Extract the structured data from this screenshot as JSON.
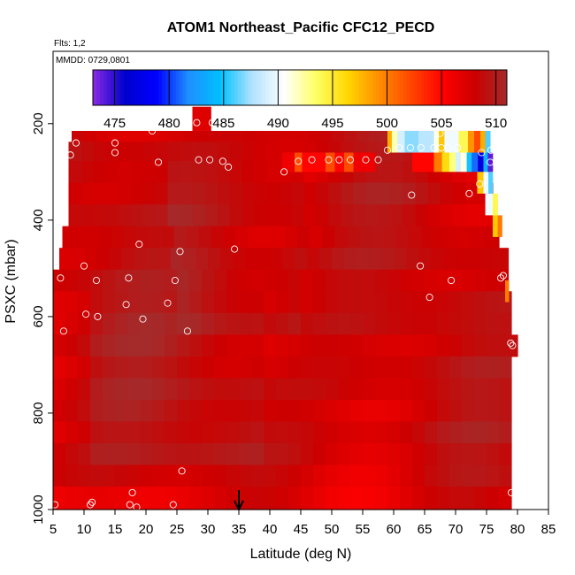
{
  "chart_data": {
    "type": "heatmap",
    "title": "ATOM1 Northeast_Pacific CFC12_PECD",
    "flights_label": "Flts: 1,2",
    "dates_label": "MMDD: 0729,0801",
    "xlabel": "Latitude (deg N)",
    "ylabel": "PSXC (mbar)",
    "xlim": [
      5,
      85
    ],
    "ylim": [
      1000,
      50
    ],
    "y_reversed": true,
    "x_ticks": [
      "5",
      "10",
      "15",
      "20",
      "25",
      "30",
      "35",
      "40",
      "45",
      "50",
      "55",
      "60",
      "65",
      "70",
      "75",
      "80",
      "85"
    ],
    "y_ticks": [
      "200",
      "400",
      "600",
      "800",
      "1000"
    ],
    "colorbar": {
      "min": 473,
      "max": 511,
      "tick_labels": [
        "475",
        "480",
        "485",
        "490",
        "495",
        "500",
        "505",
        "510"
      ],
      "colors": [
        "#8a2be2",
        "#0000cd",
        "#0000ff",
        "#1e90ff",
        "#00bfff",
        "#b0e2ff",
        "#ffffff",
        "#ffff66",
        "#ffd700",
        "#ff8c00",
        "#ff4500",
        "#ff0000",
        "#cc0000",
        "#a52a2a"
      ]
    },
    "marker": {
      "latitude": 35
    },
    "pressure_levels": [
      215,
      260,
      300,
      345,
      390,
      435,
      480,
      525,
      570,
      615,
      660,
      705,
      750,
      795,
      840,
      885,
      930,
      975
    ],
    "row_extents": [
      {
        "lat_min": 8,
        "lat_max": 75.5
      },
      {
        "lat_min": 7.5,
        "lat_max": 75.5
      },
      {
        "lat_min": 7.5,
        "lat_max": 75.5
      },
      {
        "lat_min": 7.5,
        "lat_max": 76
      },
      {
        "lat_min": 7.5,
        "lat_max": 76
      },
      {
        "lat_min": 6.5,
        "lat_max": 77
      },
      {
        "lat_min": 6,
        "lat_max": 78.5
      },
      {
        "lat_min": 5,
        "lat_max": 78.5
      },
      {
        "lat_min": 5,
        "lat_max": 79
      },
      {
        "lat_min": 5,
        "lat_max": 79
      },
      {
        "lat_min": 5,
        "lat_max": 80
      },
      {
        "lat_min": 5,
        "lat_max": 79
      },
      {
        "lat_min": 5,
        "lat_max": 79
      },
      {
        "lat_min": 5,
        "lat_max": 79
      },
      {
        "lat_min": 5,
        "lat_max": 79
      },
      {
        "lat_min": 5,
        "lat_max": 79
      },
      {
        "lat_min": 5,
        "lat_max": 79
      },
      {
        "lat_min": 5,
        "lat_max": 79
      }
    ],
    "anomalies": [
      {
        "lat_min": 27.5,
        "lat_max": 30.5,
        "p_top": 165,
        "p_bottom": 215,
        "value": 507
      },
      {
        "lat_min": 59,
        "lat_max": 59.7,
        "p_top": 215,
        "p_bottom": 260,
        "value": 498
      },
      {
        "lat_min": 59.7,
        "lat_max": 60.6,
        "p_top": 215,
        "p_bottom": 260,
        "value": 492
      },
      {
        "lat_min": 60.6,
        "lat_max": 61.8,
        "p_top": 215,
        "p_bottom": 260,
        "value": 489
      },
      {
        "lat_min": 61.8,
        "lat_max": 64,
        "p_top": 215,
        "p_bottom": 260,
        "value": 487
      },
      {
        "lat_min": 64,
        "lat_max": 66.5,
        "p_top": 215,
        "p_bottom": 260,
        "value": 488
      },
      {
        "lat_min": 66.5,
        "lat_max": 67.3,
        "p_top": 215,
        "p_bottom": 260,
        "value": 491
      },
      {
        "lat_min": 67.3,
        "lat_max": 68.2,
        "p_top": 215,
        "p_bottom": 260,
        "value": 497
      },
      {
        "lat_min": 68.2,
        "lat_max": 70.5,
        "p_top": 215,
        "p_bottom": 260,
        "value": 490
      },
      {
        "lat_min": 70.5,
        "lat_max": 72,
        "p_top": 215,
        "p_bottom": 260,
        "value": 494
      },
      {
        "lat_min": 72,
        "lat_max": 73,
        "p_top": 215,
        "p_bottom": 260,
        "value": 499
      },
      {
        "lat_min": 73,
        "lat_max": 74,
        "p_top": 215,
        "p_bottom": 260,
        "value": 502
      },
      {
        "lat_min": 74,
        "lat_max": 74.8,
        "p_top": 215,
        "p_bottom": 260,
        "value": 498
      },
      {
        "lat_min": 74.8,
        "lat_max": 75.6,
        "p_top": 215,
        "p_bottom": 260,
        "value": 486
      },
      {
        "lat_min": 42,
        "lat_max": 44,
        "p_top": 260,
        "p_bottom": 300,
        "value": 506
      },
      {
        "lat_min": 44,
        "lat_max": 45.2,
        "p_top": 260,
        "p_bottom": 300,
        "value": 502
      },
      {
        "lat_min": 45.2,
        "lat_max": 49,
        "p_top": 260,
        "p_bottom": 300,
        "value": 505
      },
      {
        "lat_min": 49,
        "lat_max": 50.5,
        "p_top": 260,
        "p_bottom": 300,
        "value": 502
      },
      {
        "lat_min": 50.5,
        "lat_max": 52,
        "p_top": 260,
        "p_bottom": 300,
        "value": 505
      },
      {
        "lat_min": 52,
        "lat_max": 53.5,
        "p_top": 260,
        "p_bottom": 300,
        "value": 502
      },
      {
        "lat_min": 53.5,
        "lat_max": 57,
        "p_top": 260,
        "p_bottom": 300,
        "value": 506
      },
      {
        "lat_min": 63,
        "lat_max": 66.5,
        "p_top": 260,
        "p_bottom": 300,
        "value": 505
      },
      {
        "lat_min": 66.5,
        "lat_max": 67.8,
        "p_top": 260,
        "p_bottom": 300,
        "value": 500
      },
      {
        "lat_min": 67.8,
        "lat_max": 69,
        "p_top": 260,
        "p_bottom": 300,
        "value": 496
      },
      {
        "lat_min": 69,
        "lat_max": 70,
        "p_top": 260,
        "p_bottom": 300,
        "value": 493
      },
      {
        "lat_min": 70,
        "lat_max": 70.8,
        "p_top": 260,
        "p_bottom": 300,
        "value": 489
      },
      {
        "lat_min": 70.8,
        "lat_max": 71.8,
        "p_top": 260,
        "p_bottom": 300,
        "value": 491
      },
      {
        "lat_min": 71.8,
        "lat_max": 72.6,
        "p_top": 260,
        "p_bottom": 300,
        "value": 485
      },
      {
        "lat_min": 72.6,
        "lat_max": 73.6,
        "p_top": 260,
        "p_bottom": 300,
        "value": 481
      },
      {
        "lat_min": 73.6,
        "lat_max": 74.5,
        "p_top": 260,
        "p_bottom": 300,
        "value": 477
      },
      {
        "lat_min": 74.5,
        "lat_max": 75.2,
        "p_top": 260,
        "p_bottom": 300,
        "value": 484
      },
      {
        "lat_min": 75.2,
        "lat_max": 76,
        "p_top": 260,
        "p_bottom": 300,
        "value": 474
      },
      {
        "lat_min": 73.5,
        "lat_max": 74.5,
        "p_top": 300,
        "p_bottom": 345,
        "value": 497
      },
      {
        "lat_min": 74.5,
        "lat_max": 75.3,
        "p_top": 300,
        "p_bottom": 345,
        "value": 490
      },
      {
        "lat_min": 75.3,
        "lat_max": 76,
        "p_top": 300,
        "p_bottom": 345,
        "value": 486
      },
      {
        "lat_min": 74.8,
        "lat_max": 76,
        "p_top": 345,
        "p_bottom": 390,
        "value": 490
      },
      {
        "lat_min": 76,
        "lat_max": 76.8,
        "p_top": 345,
        "p_bottom": 390,
        "value": 494
      },
      {
        "lat_min": 76,
        "lat_max": 76.8,
        "p_top": 390,
        "p_bottom": 435,
        "value": 497
      },
      {
        "lat_min": 76.8,
        "lat_max": 77.5,
        "p_top": 390,
        "p_bottom": 435,
        "value": 500
      },
      {
        "lat_min": 78,
        "lat_max": 78.6,
        "p_top": 525,
        "p_bottom": 570,
        "value": 500
      }
    ],
    "observations": [
      {
        "lat": 5.3,
        "p": 990
      },
      {
        "lat": 6.2,
        "p": 520
      },
      {
        "lat": 6.7,
        "p": 630
      },
      {
        "lat": 7.8,
        "p": 265
      },
      {
        "lat": 8.7,
        "p": 240
      },
      {
        "lat": 10.0,
        "p": 495
      },
      {
        "lat": 10.3,
        "p": 595
      },
      {
        "lat": 11.0,
        "p": 990
      },
      {
        "lat": 11.3,
        "p": 985
      },
      {
        "lat": 12.0,
        "p": 525
      },
      {
        "lat": 12.2,
        "p": 600
      },
      {
        "lat": 15.0,
        "p": 240
      },
      {
        "lat": 15.0,
        "p": 260
      },
      {
        "lat": 16.8,
        "p": 575
      },
      {
        "lat": 17.2,
        "p": 520
      },
      {
        "lat": 17.4,
        "p": 990
      },
      {
        "lat": 17.8,
        "p": 965
      },
      {
        "lat": 18.5,
        "p": 995
      },
      {
        "lat": 18.9,
        "p": 450
      },
      {
        "lat": 19.5,
        "p": 605
      },
      {
        "lat": 21.0,
        "p": 215
      },
      {
        "lat": 22.0,
        "p": 280
      },
      {
        "lat": 23.5,
        "p": 572
      },
      {
        "lat": 24.4,
        "p": 990
      },
      {
        "lat": 24.7,
        "p": 525
      },
      {
        "lat": 25.5,
        "p": 465
      },
      {
        "lat": 25.8,
        "p": 920
      },
      {
        "lat": 26.7,
        "p": 630
      },
      {
        "lat": 28.2,
        "p": 198
      },
      {
        "lat": 28.5,
        "p": 275
      },
      {
        "lat": 30.3,
        "p": 275
      },
      {
        "lat": 30.7,
        "p": 198
      },
      {
        "lat": 32.4,
        "p": 278
      },
      {
        "lat": 33.3,
        "p": 290
      },
      {
        "lat": 34.3,
        "p": 460
      },
      {
        "lat": 42.3,
        "p": 300
      },
      {
        "lat": 44.6,
        "p": 278
      },
      {
        "lat": 46.8,
        "p": 275
      },
      {
        "lat": 49.5,
        "p": 275
      },
      {
        "lat": 51.2,
        "p": 275
      },
      {
        "lat": 53.0,
        "p": 275
      },
      {
        "lat": 55.5,
        "p": 275
      },
      {
        "lat": 57.5,
        "p": 275
      },
      {
        "lat": 59.0,
        "p": 255
      },
      {
        "lat": 60.9,
        "p": 250
      },
      {
        "lat": 62.7,
        "p": 250
      },
      {
        "lat": 62.9,
        "p": 348
      },
      {
        "lat": 64.4,
        "p": 250
      },
      {
        "lat": 64.3,
        "p": 495
      },
      {
        "lat": 65.8,
        "p": 560
      },
      {
        "lat": 66.5,
        "p": 250
      },
      {
        "lat": 67.5,
        "p": 220
      },
      {
        "lat": 67.7,
        "p": 250
      },
      {
        "lat": 68.8,
        "p": 250
      },
      {
        "lat": 69.3,
        "p": 525
      },
      {
        "lat": 70.3,
        "p": 250
      },
      {
        "lat": 72.2,
        "p": 345
      },
      {
        "lat": 73.9,
        "p": 325
      },
      {
        "lat": 74.2,
        "p": 260
      },
      {
        "lat": 75.7,
        "p": 255
      },
      {
        "lat": 75.6,
        "p": 280
      },
      {
        "lat": 77.3,
        "p": 520
      },
      {
        "lat": 77.7,
        "p": 515
      },
      {
        "lat": 78.9,
        "p": 655
      },
      {
        "lat": 79.2,
        "p": 660
      },
      {
        "lat": 79.0,
        "p": 965
      }
    ]
  }
}
